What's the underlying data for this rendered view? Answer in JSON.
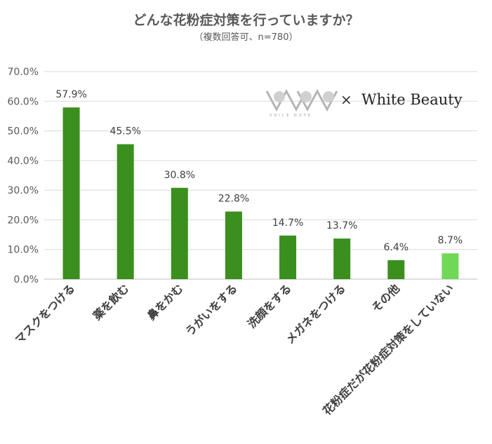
{
  "chart_data": {
    "type": "bar",
    "title": "どんな花粉症対策を行っていますか？",
    "subtitle": "（複数回答可、n=780）",
    "categories": [
      "マスクをつける",
      "薬を飲む",
      "鼻をかむ",
      "うがいをする",
      "洗顔をする",
      "メガネをつける",
      "その他",
      "花粉症だが花粉症対策をしていない"
    ],
    "values": [
      57.9,
      45.5,
      30.8,
      22.8,
      14.7,
      13.7,
      6.4,
      8.7
    ],
    "value_labels": [
      "57.9%",
      "45.5%",
      "30.8%",
      "22.8%",
      "14.7%",
      "13.7%",
      "6.4%",
      "8.7%"
    ],
    "ylim": [
      0,
      70
    ],
    "yticks": [
      "0.0%",
      "10.0%",
      "20.0%",
      "30.0%",
      "40.0%",
      "50.0%",
      "60.0%",
      "70.0%"
    ],
    "grid": true,
    "colors": {
      "bar": "#3a8f1f",
      "bar_highlight": "#6fd957",
      "grid": "#d9d9d9"
    }
  },
  "logo": {
    "brand": "White Beauty",
    "times": "×",
    "mark_text": "VOICE NOTE"
  }
}
